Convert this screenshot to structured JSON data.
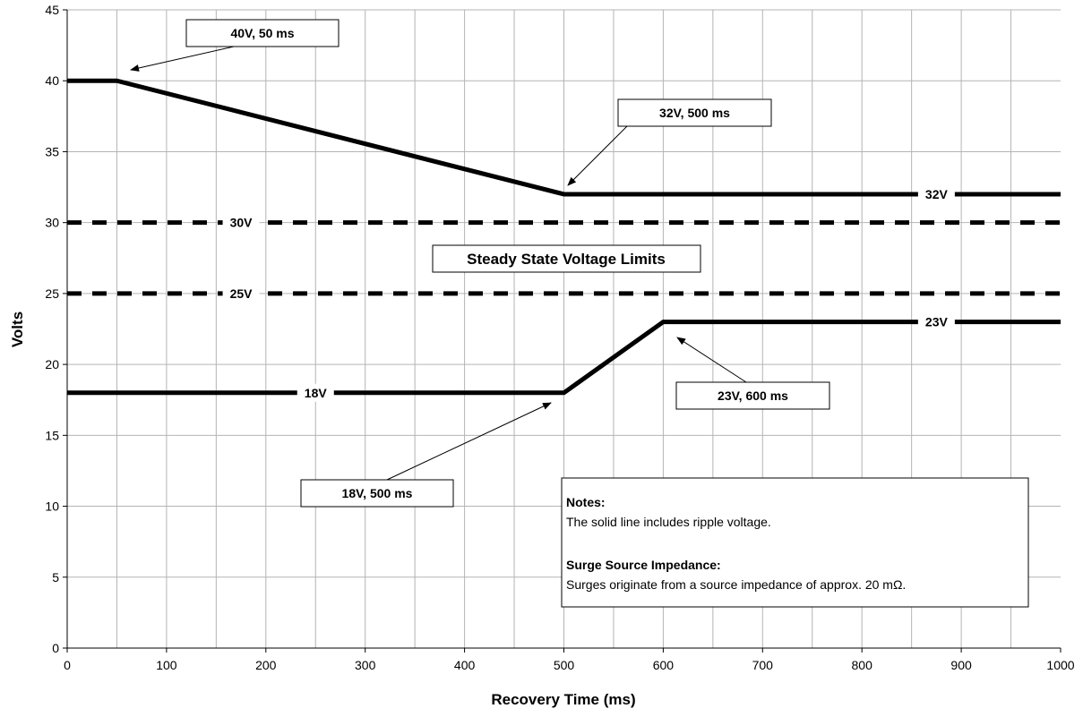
{
  "chart_data": {
    "type": "line",
    "title": "",
    "xlabel": "Recovery Time (ms)",
    "ylabel": "Volts",
    "xlim": [
      0,
      1000
    ],
    "ylim": [
      0,
      45
    ],
    "xticks": [
      0,
      100,
      200,
      300,
      400,
      500,
      600,
      700,
      800,
      900,
      1000
    ],
    "yticks": [
      0,
      5,
      10,
      15,
      20,
      25,
      30,
      35,
      40,
      45
    ],
    "grid": true,
    "series": [
      {
        "style": "solid",
        "points": [
          [
            0,
            40
          ],
          [
            50,
            40
          ],
          [
            500,
            32
          ],
          [
            1000,
            32
          ]
        ],
        "label": "32V",
        "label_at_x": 875
      },
      {
        "style": "solid",
        "points": [
          [
            0,
            18
          ],
          [
            500,
            18
          ],
          [
            600,
            23
          ],
          [
            1000,
            23
          ]
        ],
        "label": "18V / 23V",
        "labels": [
          {
            "text": "18V",
            "x": 250,
            "y": 18
          },
          {
            "text": "23V",
            "x": 875,
            "y": 23
          }
        ]
      },
      {
        "style": "dashed",
        "points": [
          [
            0,
            30
          ],
          [
            1000,
            30
          ]
        ],
        "label": "30V",
        "label_at_x": 175
      },
      {
        "style": "dashed",
        "points": [
          [
            0,
            25
          ],
          [
            1000,
            25
          ]
        ],
        "label": "25V",
        "label_at_x": 175
      }
    ],
    "callouts": [
      {
        "text": "40V, 50 ms",
        "target": [
          50,
          40
        ]
      },
      {
        "text": "32V, 500 ms",
        "target": [
          500,
          32
        ]
      },
      {
        "text": "23V, 600 ms",
        "target": [
          600,
          23
        ]
      },
      {
        "text": "18V, 500 ms",
        "target": [
          500,
          18
        ]
      }
    ],
    "band_label": "Steady State Voltage Limits",
    "notes": {
      "heading1": "Notes:",
      "line1": "The solid line includes ripple voltage.",
      "heading2": "Surge Source Impedance:",
      "line2": "Surges originate from a source impedance of approx. 20 mΩ."
    }
  }
}
